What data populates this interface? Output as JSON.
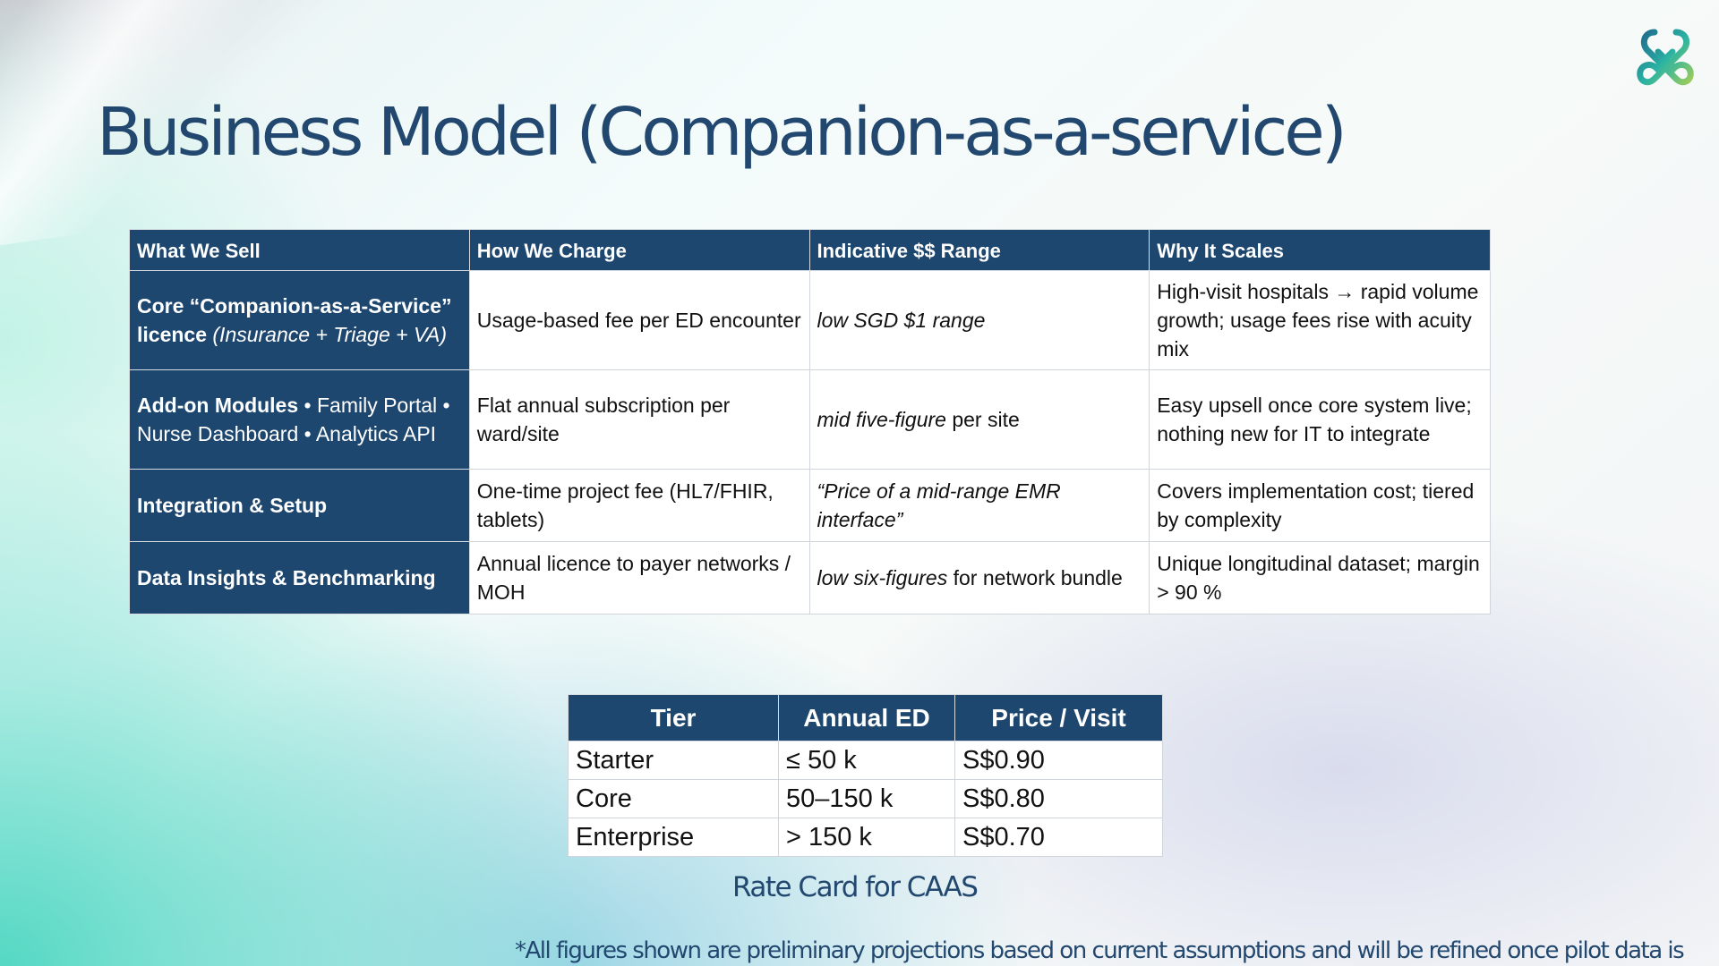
{
  "slide": {
    "title": "Business Model (Companion-as-a-service)",
    "logo_icon": "brand-logo-icon"
  },
  "main_table": {
    "headers": [
      "What We Sell",
      "How We Charge",
      "Indicative $$ Range",
      "Why It Scales"
    ],
    "rows": [
      {
        "sell_bold": "Core “Companion-as-a-Service” licence",
        "sell_rest": " (Insurance + Triage + VA)",
        "charge": "Usage-based fee per ED encounter",
        "range_italic": "low SGD $1 range",
        "range_rest": "",
        "scale": "High-visit hospitals → rapid volume growth; usage fees rise with acuity mix"
      },
      {
        "sell_bold": "Add-on Modules",
        "sell_rest": " • Family Portal • Nurse Dashboard • Analytics API",
        "charge": "Flat annual subscription per ward/site",
        "range_italic": "mid five-figure",
        "range_rest": " per site",
        "scale": "Easy upsell once core system live; nothing new for IT to integrate"
      },
      {
        "sell_bold": "Integration & Setup",
        "sell_rest": "",
        "charge": "One-time project fee (HL7/FHIR, tablets)",
        "range_italic": "“Price of a mid-range EMR interface”",
        "range_rest": "",
        "scale": "Covers implementation cost; tiered by complexity"
      },
      {
        "sell_bold": "Data Insights & Benchmarking",
        "sell_rest": "",
        "charge": "Annual licence to payer networks / MOH",
        "range_italic": "low six-figures",
        "range_rest": " for network bundle",
        "scale": "Unique longitudinal dataset; margin > 90 %"
      }
    ]
  },
  "rate_table": {
    "headers": [
      "Tier",
      "Annual ED",
      "Price / Visit"
    ],
    "rows": [
      [
        "Starter",
        "≤ 50 k",
        "S$0.90"
      ],
      [
        "Core",
        "50–150 k",
        "S$0.80"
      ],
      [
        "Enterprise",
        "> 150 k",
        "S$0.70"
      ]
    ],
    "caption": "Rate Card for CAAS"
  },
  "footnote": "*All figures shown are preliminary projections based on current assumptions and will be refined once pilot data is",
  "colors": {
    "header_bg": "#1e476f",
    "title": "#22486f"
  }
}
